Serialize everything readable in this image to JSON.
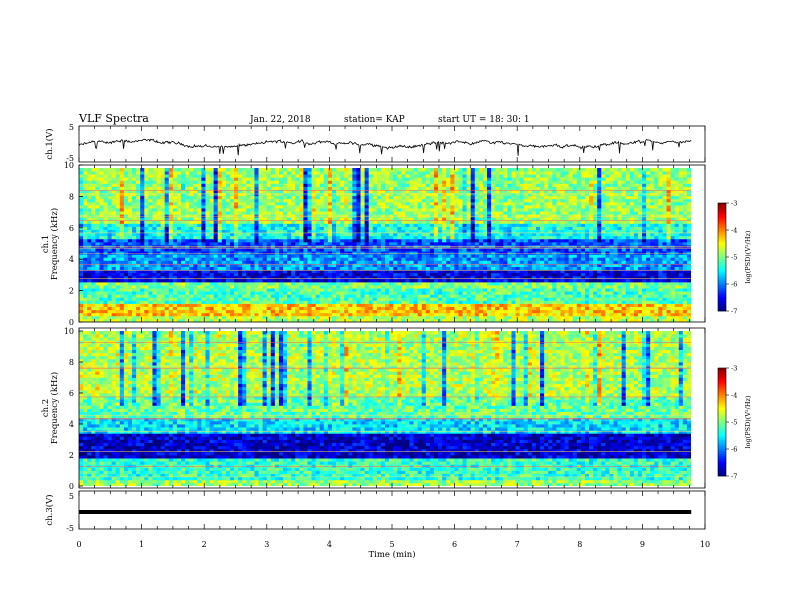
{
  "header": {
    "title": "VLF Spectra",
    "date": "Jan. 22, 2018",
    "station": "station= KAP",
    "start": "start  UT =   18: 30: 1"
  },
  "chart_data": [
    {
      "type": "line",
      "name": "ch1-voltage-trace",
      "ylabel": "ch.1(V)",
      "ylim": [
        -5,
        5
      ],
      "yticks": [
        "5",
        "-5"
      ],
      "xlim": [
        0,
        10
      ],
      "note": "noisy voltage waveform oscillating between about -1 and 1 V"
    },
    {
      "type": "heatmap",
      "name": "ch1-spectrogram",
      "ylabel": "ch.1",
      "ylabel2": "Frequency (kHz)",
      "ylim": [
        0,
        10
      ],
      "yticks": [
        "0",
        "2",
        "4",
        "6",
        "8",
        "10"
      ],
      "xlim": [
        0,
        10
      ],
      "colorbar": {
        "label": "log(PSD)(V²/Hz)",
        "range": [
          -7,
          -3
        ],
        "ticks": [
          "-3",
          "-4",
          "-5",
          "-6",
          "-7"
        ]
      },
      "bands": [
        {
          "from": 0.0,
          "to": 0.4,
          "level": -4.8
        },
        {
          "from": 0.4,
          "to": 1.2,
          "level": -4.3
        },
        {
          "from": 1.2,
          "to": 2.2,
          "level": -5.2
        },
        {
          "from": 2.2,
          "to": 2.6,
          "level": -5.0
        },
        {
          "from": 2.6,
          "to": 3.4,
          "level": -6.6
        },
        {
          "from": 3.4,
          "to": 4.4,
          "level": -5.9
        },
        {
          "from": 4.4,
          "to": 5.4,
          "level": -6.2
        },
        {
          "from": 5.4,
          "to": 6.5,
          "level": -5.4
        },
        {
          "from": 6.5,
          "to": 10.0,
          "level": -4.9
        }
      ]
    },
    {
      "type": "heatmap",
      "name": "ch2-spectrogram",
      "ylabel": "ch.2",
      "ylabel2": "Frequency (kHz)",
      "ylim": [
        0,
        10
      ],
      "yticks": [
        "0",
        "2",
        "4",
        "6",
        "8",
        "10"
      ],
      "xlim": [
        0,
        10
      ],
      "colorbar": {
        "label": "log(PSD)(V²/Hz)",
        "range": [
          -7,
          -3
        ],
        "ticks": [
          "-3",
          "-4",
          "-5",
          "-6",
          "-7"
        ]
      },
      "bands": [
        {
          "from": 0.0,
          "to": 0.5,
          "level": -4.9
        },
        {
          "from": 0.5,
          "to": 1.8,
          "level": -5.3
        },
        {
          "from": 1.8,
          "to": 3.5,
          "level": -6.7
        },
        {
          "from": 3.5,
          "to": 4.5,
          "level": -5.6
        },
        {
          "from": 4.5,
          "to": 5.8,
          "level": -5.1
        },
        {
          "from": 5.8,
          "to": 10.0,
          "level": -4.8
        }
      ]
    },
    {
      "type": "line",
      "name": "ch3-voltage-trace",
      "ylabel": "ch.3(V)",
      "ylim": [
        -5,
        5
      ],
      "yticks": [
        "5",
        "-5"
      ],
      "xlim": [
        0,
        10
      ],
      "constant_value": 0,
      "xlabel": "Time (min)",
      "xticks": [
        "0",
        "1",
        "2",
        "3",
        "4",
        "5",
        "6",
        "7",
        "8",
        "9",
        "10"
      ]
    }
  ]
}
